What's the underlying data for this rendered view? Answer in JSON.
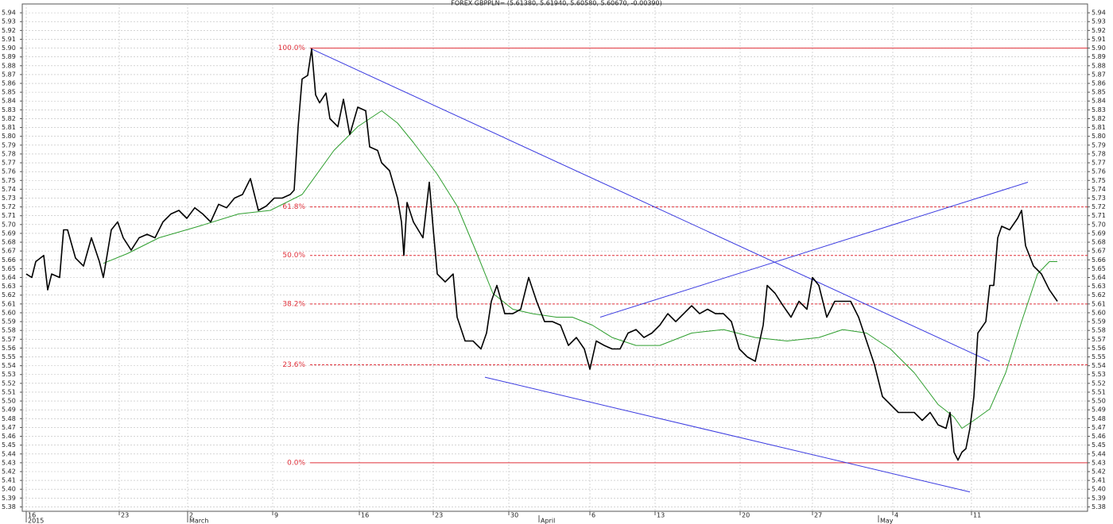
{
  "chart_data": {
    "type": "line",
    "title": "FOREX GBPPLN= (5.61380, 5.61940, 5.60580, 5.60670, -0.00390)",
    "xlim": [
      -0.25,
      66.75
    ],
    "ylim": [
      5.375,
      5.95
    ],
    "xticks": [
      {
        "value": 0,
        "label": "16"
      },
      {
        "value": 5.85,
        "label": "23"
      },
      {
        "value": 10.15,
        "label": "2"
      },
      {
        "value": 15.5,
        "label": "9"
      },
      {
        "value": 20.95,
        "label": "16"
      },
      {
        "value": 25.6,
        "label": "23"
      },
      {
        "value": 30.35,
        "label": "30"
      },
      {
        "value": 35.45,
        "label": "6"
      },
      {
        "value": 39.55,
        "label": "13"
      },
      {
        "value": 44.9,
        "label": "20"
      },
      {
        "value": 49.45,
        "label": "27"
      },
      {
        "value": 54.5,
        "label": "4"
      },
      {
        "value": 59.45,
        "label": "11"
      }
    ],
    "month_ticks": [
      {
        "value": 0,
        "label": "2015"
      },
      {
        "value": 10.15,
        "label": "March"
      },
      {
        "value": 32.25,
        "label": "April"
      },
      {
        "value": 53.6,
        "label": "May"
      }
    ],
    "yticks": [
      5.38,
      5.39,
      {
        "value": 5.4,
        "label": "5.40"
      },
      5.41,
      5.42,
      5.43,
      5.44,
      5.45,
      5.46,
      5.47,
      5.48,
      5.49,
      {
        "value": 5.5,
        "label": "5.50"
      },
      5.51,
      5.52,
      5.53,
      5.54,
      5.55,
      5.56,
      5.57,
      5.58,
      5.59,
      {
        "value": 5.6,
        "label": "5.60"
      },
      5.61,
      5.62,
      5.63,
      5.64,
      5.65,
      5.66,
      5.67,
      5.68,
      5.69,
      {
        "value": 5.7,
        "label": "5.70"
      },
      5.71,
      5.72,
      5.73,
      5.74,
      5.75,
      5.76,
      5.77,
      5.78,
      5.79,
      {
        "value": 5.8,
        "label": "5.80"
      },
      5.81,
      5.82,
      5.83,
      5.84,
      5.85,
      5.86,
      5.87,
      5.88,
      5.89,
      {
        "value": 5.9,
        "label": "5.90"
      },
      5.91,
      5.92,
      5.93,
      5.94
    ],
    "grid": true,
    "series": [
      {
        "color": "#000000",
        "width": 1.6,
        "x": [
          0,
          0.35,
          0.6,
          1.1,
          1.35,
          1.6,
          2.1,
          2.35,
          2.6,
          3.1,
          3.6,
          4.1,
          4.6,
          4.85,
          5.35,
          5.75,
          6.1,
          6.6,
          7.1,
          7.6,
          8.1,
          8.6,
          9.1,
          9.6,
          10.1,
          10.6,
          11.1,
          11.6,
          12.1,
          12.6,
          13.1,
          13.6,
          14.1,
          14.35,
          14.6,
          15.1,
          15.6,
          16.1,
          16.6,
          16.85,
          17.1,
          17.35,
          17.7,
          17.95,
          18.2,
          18.45,
          18.85,
          19.1,
          19.6,
          19.95,
          20.35,
          20.85,
          21.35,
          21.6,
          22.1,
          22.35,
          22.85,
          23.35,
          23.6,
          23.75,
          23.95,
          24.35,
          24.95,
          25.35,
          25.6,
          25.85,
          26.35,
          26.85,
          27.1,
          27.6,
          28.1,
          28.6,
          28.95,
          29.25,
          29.6,
          30.1,
          30.6,
          31.1,
          31.6,
          32.1,
          32.6,
          33.1,
          33.6,
          34.1,
          34.6,
          35.1,
          35.45,
          35.85,
          36.35,
          36.85,
          37.35,
          37.85,
          38.35,
          38.85,
          39.35,
          39.85,
          40.35,
          40.85,
          41.35,
          41.85,
          42.35,
          42.85,
          43.35,
          43.85,
          44.35,
          44.85,
          45.35,
          45.85,
          46.35,
          46.6,
          47.1,
          47.6,
          48.1,
          48.6,
          49.1,
          49.45,
          49.85,
          50.35,
          50.85,
          51.35,
          51.85,
          52.35,
          52.85,
          53.35,
          53.85,
          54.35,
          54.85,
          55.35,
          55.85,
          56.35,
          56.85,
          57.35,
          57.85,
          58.1,
          58.35,
          58.6,
          58.85,
          59.1,
          59.35,
          59.6,
          59.85,
          60.35,
          60.6,
          60.85,
          61.1,
          61.35,
          61.85,
          62.35,
          62.6,
          62.85,
          63.35,
          63.85,
          64.35,
          64.85
        ],
        "values": [
          5.644,
          5.64,
          5.658,
          5.665,
          5.626,
          5.644,
          5.64,
          5.694,
          5.694,
          5.662,
          5.653,
          5.685,
          5.658,
          5.64,
          5.694,
          5.703,
          5.685,
          5.671,
          5.685,
          5.689,
          5.685,
          5.703,
          5.712,
          5.716,
          5.707,
          5.719,
          5.712,
          5.703,
          5.723,
          5.719,
          5.73,
          5.734,
          5.752,
          5.734,
          5.716,
          5.721,
          5.73,
          5.73,
          5.734,
          5.739,
          5.811,
          5.865,
          5.869,
          5.899,
          5.847,
          5.838,
          5.849,
          5.82,
          5.811,
          5.842,
          5.802,
          5.833,
          5.829,
          5.788,
          5.784,
          5.77,
          5.761,
          5.73,
          5.703,
          5.665,
          5.725,
          5.703,
          5.685,
          5.748,
          5.694,
          5.644,
          5.635,
          5.644,
          5.595,
          5.568,
          5.568,
          5.559,
          5.577,
          5.613,
          5.631,
          5.599,
          5.599,
          5.604,
          5.64,
          5.613,
          5.59,
          5.59,
          5.586,
          5.563,
          5.572,
          5.559,
          5.536,
          5.568,
          5.563,
          5.559,
          5.559,
          5.577,
          5.581,
          5.572,
          5.577,
          5.586,
          5.599,
          5.59,
          5.599,
          5.608,
          5.599,
          5.604,
          5.599,
          5.599,
          5.59,
          5.559,
          5.55,
          5.545,
          5.586,
          5.631,
          5.622,
          5.608,
          5.595,
          5.613,
          5.604,
          5.64,
          5.631,
          5.595,
          5.613,
          5.613,
          5.613,
          5.595,
          5.568,
          5.541,
          5.505,
          5.496,
          5.487,
          5.487,
          5.487,
          5.478,
          5.487,
          5.473,
          5.469,
          5.487,
          5.442,
          5.433,
          5.442,
          5.446,
          5.469,
          5.505,
          5.577,
          5.59,
          5.631,
          5.631,
          5.685,
          5.698,
          5.694,
          5.707,
          5.716,
          5.676,
          5.653,
          5.644,
          5.626,
          5.613
        ]
      },
      {
        "color": "#2e9e2e",
        "width": 1,
        "x": [
          4.85,
          6.35,
          8.35,
          10.85,
          13.35,
          15.35,
          17.35,
          19.35,
          20.85,
          22.35,
          23.35,
          24.35,
          25.85,
          27.1,
          28.35,
          29.35,
          30.6,
          31.85,
          33.35,
          34.35,
          35.6,
          36.85,
          38.35,
          39.85,
          41.85,
          43.85,
          45.85,
          47.85,
          49.85,
          51.35,
          52.85,
          54.35,
          55.85,
          57.35,
          58.35,
          58.85,
          59.6,
          60.6,
          61.6,
          62.6,
          63.6,
          64.35,
          64.85
        ],
        "values": [
          5.656,
          5.667,
          5.685,
          5.698,
          5.712,
          5.716,
          5.734,
          5.784,
          5.811,
          5.829,
          5.815,
          5.793,
          5.757,
          5.721,
          5.667,
          5.622,
          5.604,
          5.599,
          5.595,
          5.595,
          5.586,
          5.572,
          5.563,
          5.563,
          5.577,
          5.581,
          5.572,
          5.568,
          5.572,
          5.581,
          5.577,
          5.559,
          5.532,
          5.496,
          5.482,
          5.469,
          5.478,
          5.491,
          5.532,
          5.59,
          5.644,
          5.658,
          5.658
        ]
      },
      {
        "color": "#3a3ae0",
        "width": 1,
        "x": [
          17.95,
          60.6
        ],
        "values": [
          5.899,
          5.545
        ]
      },
      {
        "color": "#3a3ae0",
        "width": 1,
        "x": [
          28.85,
          59.35
        ],
        "values": [
          5.527,
          5.397
        ]
      },
      {
        "color": "#3a3ae0",
        "width": 1,
        "x": [
          36.1,
          63
        ],
        "values": [
          5.595,
          5.748
        ]
      }
    ],
    "fib_color": "#e0303a",
    "fib_levels": [
      {
        "label": "100.0%",
        "value": 5.9,
        "style": "solid"
      },
      {
        "label": "61.8%",
        "value": 5.72,
        "style": "dashed"
      },
      {
        "label": "50.0%",
        "value": 5.665,
        "style": "dashed"
      },
      {
        "label": "38.2%",
        "value": 5.61,
        "style": "dashed"
      },
      {
        "label": "23.6%",
        "value": 5.541,
        "style": "dashed"
      },
      {
        "label": "0.0%",
        "value": 5.43,
        "style": "solid"
      }
    ]
  }
}
